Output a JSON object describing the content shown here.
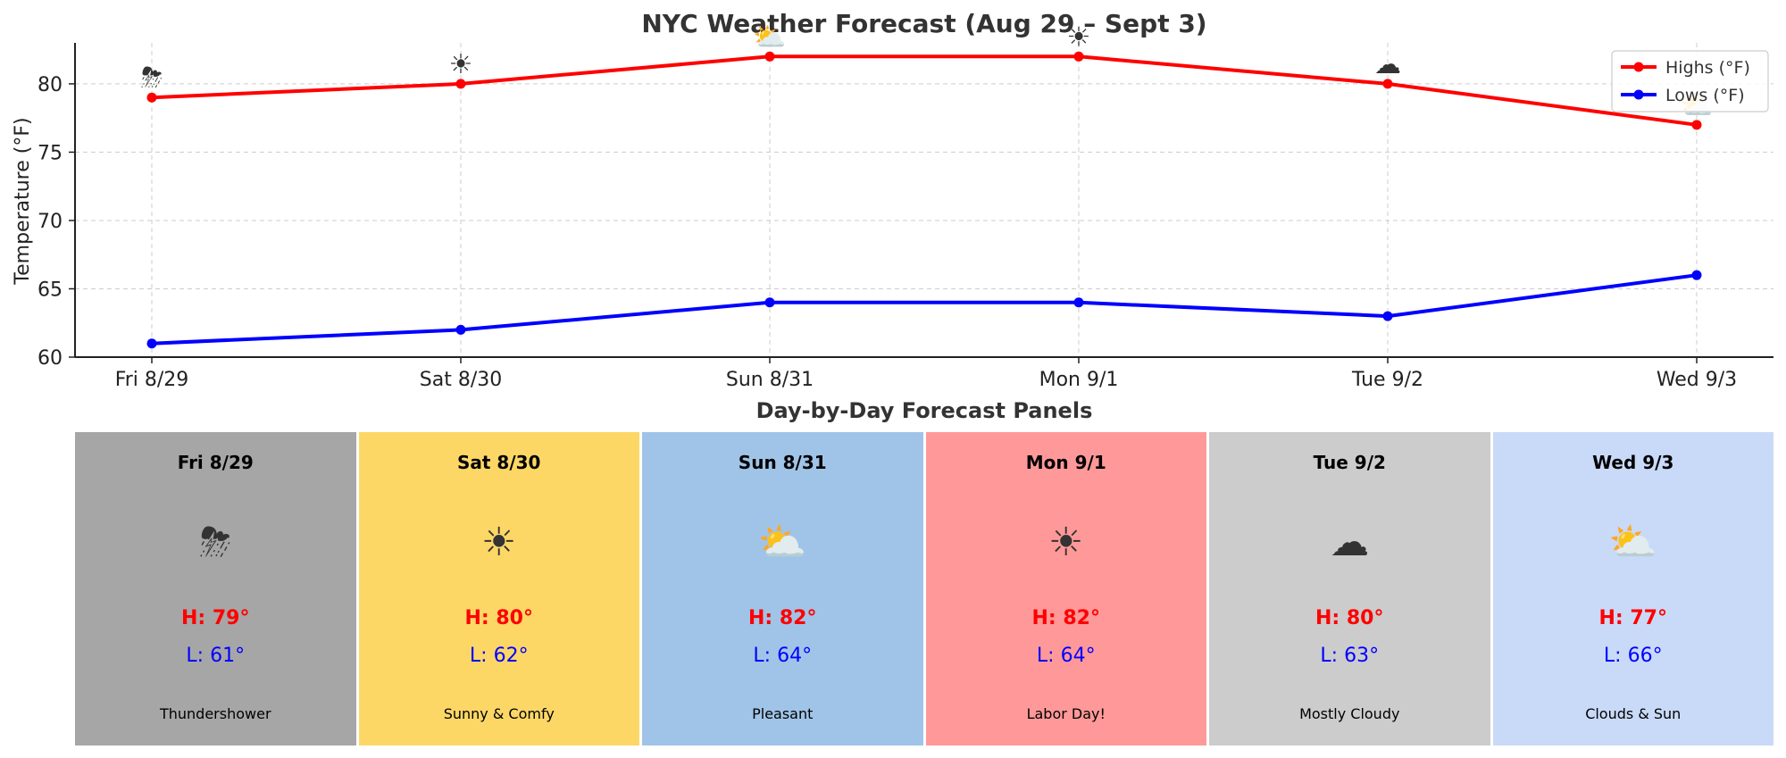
{
  "chart_data": {
    "type": "line",
    "title": "NYC Weather Forecast (Aug 29 – Sept 3)",
    "xlabel": "",
    "ylabel": "Temperature (°F)",
    "ylim": [
      60,
      83
    ],
    "yticks": [
      60,
      65,
      70,
      75,
      80
    ],
    "grid": true,
    "legend_position": "top-right",
    "categories": [
      "Fri 8/29",
      "Sat 8/30",
      "Sun 8/31",
      "Mon 9/1",
      "Tue 9/2",
      "Wed 9/3"
    ],
    "series": [
      {
        "name": "Highs (°F)",
        "color": "#ff0000",
        "values": [
          79,
          80,
          82,
          82,
          80,
          77
        ]
      },
      {
        "name": "Lows (°F)",
        "color": "#0000ff",
        "values": [
          61,
          62,
          64,
          64,
          63,
          66
        ]
      }
    ],
    "annotations": [
      {
        "category": "Fri 8/29",
        "icon": "thunder-cloud-icon",
        "glyph": "⛈"
      },
      {
        "category": "Sat 8/30",
        "icon": "sun-icon",
        "glyph": "☀"
      },
      {
        "category": "Sun 8/31",
        "icon": "sun-behind-cloud-icon",
        "glyph": "⛅"
      },
      {
        "category": "Mon 9/1",
        "icon": "sun-icon",
        "glyph": "☀"
      },
      {
        "category": "Tue 9/2",
        "icon": "cloud-icon",
        "glyph": "☁"
      },
      {
        "category": "Wed 9/3",
        "icon": "sun-behind-cloud-icon",
        "glyph": "⛅"
      }
    ]
  },
  "panels_section": {
    "title": "Day-by-Day Forecast Panels",
    "panels": [
      {
        "day": "Fri 8/29",
        "icon": "thunder-cloud-icon",
        "glyph": "⛈",
        "high": "H: 79°",
        "low": "L: 61°",
        "desc": "Thundershower",
        "bg_color": "#a6a6a6"
      },
      {
        "day": "Sat 8/30",
        "icon": "sun-icon",
        "glyph": "☀",
        "high": "H: 80°",
        "low": "L: 62°",
        "desc": "Sunny & Comfy",
        "bg_color": "#fdd766"
      },
      {
        "day": "Sun 8/31",
        "icon": "sun-behind-cloud-icon",
        "glyph": "⛅",
        "high": "H: 82°",
        "low": "L: 64°",
        "desc": "Pleasant",
        "bg_color": "#a0c4e8"
      },
      {
        "day": "Mon 9/1",
        "icon": "sun-icon",
        "glyph": "☀",
        "high": "H: 82°",
        "low": "L: 64°",
        "desc": "Labor Day!",
        "bg_color": "#ff9999"
      },
      {
        "day": "Tue 9/2",
        "icon": "cloud-icon",
        "glyph": "☁",
        "high": "H: 80°",
        "low": "L: 63°",
        "desc": "Mostly Cloudy",
        "bg_color": "#cccccc"
      },
      {
        "day": "Wed 9/3",
        "icon": "sun-behind-cloud-icon",
        "glyph": "⛅",
        "high": "H: 77°",
        "low": "L: 66°",
        "desc": "Clouds & Sun",
        "bg_color": "#c9daf8"
      }
    ]
  }
}
